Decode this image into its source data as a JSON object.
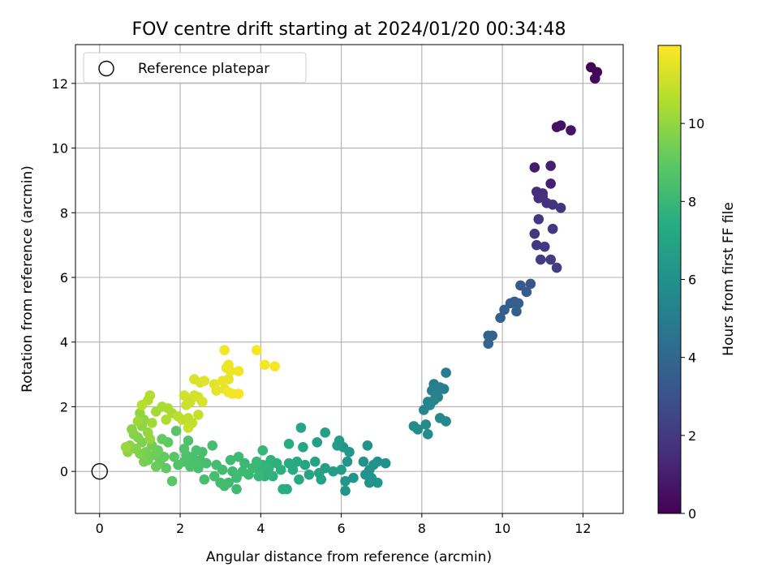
{
  "chart_data": {
    "type": "scatter",
    "title": "FOV centre drift starting at 2024/01/20 00:34:48",
    "xlabel": "Angular distance from reference (arcmin)",
    "ylabel": "Rotation from reference (arcmin)",
    "xlim": [
      -0.6,
      13.0
    ],
    "ylim": [
      -1.3,
      13.2
    ],
    "xticks": [
      0,
      2,
      4,
      6,
      8,
      10,
      12
    ],
    "yticks": [
      0,
      2,
      4,
      6,
      8,
      10,
      12
    ],
    "grid": true,
    "legend": {
      "position": "top-left",
      "entries": [
        {
          "label": "Reference platepar",
          "marker": "open-circle",
          "x": 0,
          "y": 0
        }
      ]
    },
    "colorbar": {
      "label": "Hours from first FF file",
      "colormap": "viridis",
      "range": [
        0,
        12
      ],
      "ticks": [
        0,
        2,
        4,
        6,
        8,
        10
      ]
    },
    "points": [
      {
        "x": 12.2,
        "y": 12.5,
        "c": 0.1
      },
      {
        "x": 12.35,
        "y": 12.35,
        "c": 0.15
      },
      {
        "x": 12.3,
        "y": 12.15,
        "c": 0.2
      },
      {
        "x": 11.35,
        "y": 10.65,
        "c": 0.5
      },
      {
        "x": 11.45,
        "y": 10.7,
        "c": 0.55
      },
      {
        "x": 11.7,
        "y": 10.55,
        "c": 0.6
      },
      {
        "x": 10.8,
        "y": 9.4,
        "c": 0.9
      },
      {
        "x": 11.2,
        "y": 9.45,
        "c": 1.0
      },
      {
        "x": 11.2,
        "y": 8.9,
        "c": 1.1
      },
      {
        "x": 10.85,
        "y": 8.65,
        "c": 1.5
      },
      {
        "x": 11.0,
        "y": 8.6,
        "c": 1.55
      },
      {
        "x": 10.9,
        "y": 8.45,
        "c": 1.6
      },
      {
        "x": 11.0,
        "y": 8.5,
        "c": 1.65
      },
      {
        "x": 11.1,
        "y": 8.3,
        "c": 1.7
      },
      {
        "x": 11.25,
        "y": 8.25,
        "c": 1.75
      },
      {
        "x": 11.45,
        "y": 8.15,
        "c": 1.8
      },
      {
        "x": 10.9,
        "y": 7.8,
        "c": 1.85
      },
      {
        "x": 11.25,
        "y": 7.5,
        "c": 1.9
      },
      {
        "x": 10.8,
        "y": 7.35,
        "c": 1.95
      },
      {
        "x": 10.85,
        "y": 7.0,
        "c": 2.0
      },
      {
        "x": 11.05,
        "y": 6.95,
        "c": 2.05
      },
      {
        "x": 10.95,
        "y": 6.55,
        "c": 2.1
      },
      {
        "x": 11.2,
        "y": 6.55,
        "c": 2.15
      },
      {
        "x": 11.35,
        "y": 6.3,
        "c": 2.2
      },
      {
        "x": 10.7,
        "y": 5.8,
        "c": 3.3
      },
      {
        "x": 10.45,
        "y": 5.75,
        "c": 3.35
      },
      {
        "x": 10.6,
        "y": 5.55,
        "c": 3.4
      },
      {
        "x": 10.3,
        "y": 5.25,
        "c": 3.45
      },
      {
        "x": 10.2,
        "y": 5.2,
        "c": 3.5
      },
      {
        "x": 10.4,
        "y": 5.2,
        "c": 3.55
      },
      {
        "x": 10.05,
        "y": 5.0,
        "c": 3.6
      },
      {
        "x": 10.35,
        "y": 4.95,
        "c": 3.65
      },
      {
        "x": 9.95,
        "y": 4.75,
        "c": 3.7
      },
      {
        "x": 9.65,
        "y": 4.2,
        "c": 3.75
      },
      {
        "x": 9.75,
        "y": 4.2,
        "c": 3.8
      },
      {
        "x": 9.65,
        "y": 3.95,
        "c": 3.85
      },
      {
        "x": 8.6,
        "y": 3.05,
        "c": 5.0
      },
      {
        "x": 8.3,
        "y": 2.7,
        "c": 5.05
      },
      {
        "x": 8.45,
        "y": 2.6,
        "c": 5.1
      },
      {
        "x": 8.55,
        "y": 2.55,
        "c": 5.15
      },
      {
        "x": 8.25,
        "y": 2.5,
        "c": 5.2
      },
      {
        "x": 8.35,
        "y": 2.4,
        "c": 5.25
      },
      {
        "x": 8.4,
        "y": 2.3,
        "c": 5.3
      },
      {
        "x": 8.3,
        "y": 2.2,
        "c": 5.35
      },
      {
        "x": 8.15,
        "y": 2.15,
        "c": 5.4
      },
      {
        "x": 8.2,
        "y": 2.05,
        "c": 5.45
      },
      {
        "x": 8.05,
        "y": 1.9,
        "c": 5.5
      },
      {
        "x": 8.45,
        "y": 1.65,
        "c": 5.55
      },
      {
        "x": 8.6,
        "y": 1.55,
        "c": 5.6
      },
      {
        "x": 8.1,
        "y": 1.45,
        "c": 5.65
      },
      {
        "x": 7.8,
        "y": 1.4,
        "c": 5.7
      },
      {
        "x": 7.9,
        "y": 1.3,
        "c": 5.75
      },
      {
        "x": 8.15,
        "y": 1.15,
        "c": 5.8
      },
      {
        "x": 7.1,
        "y": 0.25,
        "c": 6.0
      },
      {
        "x": 6.9,
        "y": 0.3,
        "c": 6.02
      },
      {
        "x": 6.8,
        "y": 0.2,
        "c": 6.04
      },
      {
        "x": 6.65,
        "y": 0.8,
        "c": 6.06
      },
      {
        "x": 6.55,
        "y": 0.3,
        "c": 6.08
      },
      {
        "x": 6.7,
        "y": 0.05,
        "c": 6.1
      },
      {
        "x": 6.6,
        "y": -0.1,
        "c": 6.12
      },
      {
        "x": 6.75,
        "y": -0.2,
        "c": 6.14
      },
      {
        "x": 6.9,
        "y": -0.35,
        "c": 6.16
      },
      {
        "x": 6.7,
        "y": -0.35,
        "c": 6.18
      },
      {
        "x": 6.3,
        "y": -0.2,
        "c": 6.2
      },
      {
        "x": 6.1,
        "y": -0.6,
        "c": 6.22
      },
      {
        "x": 6.1,
        "y": -0.3,
        "c": 6.24
      },
      {
        "x": 6.15,
        "y": 0.3,
        "c": 6.26
      },
      {
        "x": 6.05,
        "y": 0.75,
        "c": 6.28
      },
      {
        "x": 6.2,
        "y": 0.6,
        "c": 6.3
      },
      {
        "x": 5.95,
        "y": 0.95,
        "c": 6.5
      },
      {
        "x": 5.9,
        "y": 0.8,
        "c": 6.55
      },
      {
        "x": 6.0,
        "y": 0.05,
        "c": 6.6
      },
      {
        "x": 5.8,
        "y": 0.0,
        "c": 6.65
      },
      {
        "x": 5.6,
        "y": 0.1,
        "c": 6.7
      },
      {
        "x": 5.6,
        "y": 1.2,
        "c": 6.75
      },
      {
        "x": 5.4,
        "y": 0.9,
        "c": 6.8
      },
      {
        "x": 5.45,
        "y": -0.05,
        "c": 6.85
      },
      {
        "x": 5.5,
        "y": -0.25,
        "c": 6.9
      },
      {
        "x": 5.35,
        "y": 0.3,
        "c": 6.95
      },
      {
        "x": 5.2,
        "y": -0.1,
        "c": 7.0
      },
      {
        "x": 5.1,
        "y": 0.2,
        "c": 7.05
      },
      {
        "x": 5.05,
        "y": 0.75,
        "c": 7.1
      },
      {
        "x": 5.0,
        "y": 1.35,
        "c": 7.15
      },
      {
        "x": 4.95,
        "y": -0.25,
        "c": 7.2
      },
      {
        "x": 4.9,
        "y": 0.3,
        "c": 7.25
      },
      {
        "x": 4.8,
        "y": 0.05,
        "c": 7.3
      },
      {
        "x": 4.7,
        "y": 0.25,
        "c": 7.35
      },
      {
        "x": 4.7,
        "y": 0.85,
        "c": 7.4
      },
      {
        "x": 4.65,
        "y": -0.55,
        "c": 7.45
      },
      {
        "x": 4.55,
        "y": -0.55,
        "c": 7.5
      },
      {
        "x": 4.5,
        "y": 0.05,
        "c": 7.55
      },
      {
        "x": 4.4,
        "y": 0.25,
        "c": 7.6
      },
      {
        "x": 4.3,
        "y": -0.15,
        "c": 7.65
      },
      {
        "x": 4.25,
        "y": 0.35,
        "c": 7.7
      },
      {
        "x": 4.2,
        "y": 0.1,
        "c": 7.75
      },
      {
        "x": 4.1,
        "y": -0.15,
        "c": 7.8
      },
      {
        "x": 4.05,
        "y": 0.2,
        "c": 7.85
      },
      {
        "x": 4.0,
        "y": 0.05,
        "c": 7.9
      },
      {
        "x": 4.05,
        "y": 0.65,
        "c": 7.95
      },
      {
        "x": 3.95,
        "y": -0.15,
        "c": 8.0
      },
      {
        "x": 3.9,
        "y": 0.3,
        "c": 8.02
      },
      {
        "x": 3.8,
        "y": 0.1,
        "c": 8.04
      },
      {
        "x": 3.7,
        "y": -0.1,
        "c": 8.06
      },
      {
        "x": 3.6,
        "y": 0.25,
        "c": 8.08
      },
      {
        "x": 3.55,
        "y": 0.0,
        "c": 8.1
      },
      {
        "x": 3.45,
        "y": 0.45,
        "c": 8.12
      },
      {
        "x": 3.4,
        "y": -0.2,
        "c": 8.14
      },
      {
        "x": 3.4,
        "y": -0.55,
        "c": 8.16
      },
      {
        "x": 3.3,
        "y": 0.0,
        "c": 8.18
      },
      {
        "x": 3.25,
        "y": 0.35,
        "c": 8.2
      },
      {
        "x": 3.2,
        "y": -0.35,
        "c": 8.22
      },
      {
        "x": 3.1,
        "y": -0.45,
        "c": 8.24
      },
      {
        "x": 3.05,
        "y": 0.05,
        "c": 8.26
      },
      {
        "x": 3.0,
        "y": -0.35,
        "c": 8.28
      },
      {
        "x": 2.9,
        "y": 0.2,
        "c": 8.3
      },
      {
        "x": 2.85,
        "y": -0.15,
        "c": 8.32
      },
      {
        "x": 2.8,
        "y": 0.8,
        "c": 8.34
      },
      {
        "x": 2.65,
        "y": 0.25,
        "c": 8.36
      },
      {
        "x": 2.6,
        "y": -0.25,
        "c": 8.38
      },
      {
        "x": 2.55,
        "y": 0.6,
        "c": 8.4
      },
      {
        "x": 2.5,
        "y": 0.35,
        "c": 8.42
      },
      {
        "x": 2.45,
        "y": 0.1,
        "c": 8.44
      },
      {
        "x": 2.4,
        "y": 0.65,
        "c": 8.46
      },
      {
        "x": 2.35,
        "y": 0.3,
        "c": 8.48
      },
      {
        "x": 2.3,
        "y": 0.45,
        "c": 8.5
      },
      {
        "x": 2.25,
        "y": 0.15,
        "c": 8.52
      },
      {
        "x": 2.2,
        "y": 0.95,
        "c": 8.54
      },
      {
        "x": 2.15,
        "y": 0.5,
        "c": 8.56
      },
      {
        "x": 2.1,
        "y": 0.3,
        "c": 8.58
      },
      {
        "x": 2.1,
        "y": 0.7,
        "c": 8.6
      },
      {
        "x": 1.95,
        "y": 0.2,
        "c": 8.62
      },
      {
        "x": 1.9,
        "y": 1.25,
        "c": 8.8
      },
      {
        "x": 1.85,
        "y": 0.45,
        "c": 8.85
      },
      {
        "x": 1.8,
        "y": -0.3,
        "c": 8.9
      },
      {
        "x": 1.7,
        "y": 0.9,
        "c": 8.95
      },
      {
        "x": 1.65,
        "y": 0.1,
        "c": 9.0
      },
      {
        "x": 1.6,
        "y": 0.45,
        "c": 9.05
      },
      {
        "x": 1.55,
        "y": 1.0,
        "c": 9.1
      },
      {
        "x": 1.5,
        "y": 0.3,
        "c": 9.15
      },
      {
        "x": 1.45,
        "y": 0.65,
        "c": 9.2
      },
      {
        "x": 1.4,
        "y": 0.15,
        "c": 9.25
      },
      {
        "x": 1.35,
        "y": 0.5,
        "c": 9.3
      },
      {
        "x": 1.3,
        "y": 0.8,
        "c": 9.35
      },
      {
        "x": 1.2,
        "y": 0.35,
        "c": 9.4
      },
      {
        "x": 1.15,
        "y": 0.6,
        "c": 9.45
      },
      {
        "x": 1.1,
        "y": 0.3,
        "c": 9.5
      },
      {
        "x": 1.05,
        "y": 0.9,
        "c": 9.55
      },
      {
        "x": 1.0,
        "y": 0.55,
        "c": 9.6
      },
      {
        "x": 0.95,
        "y": 1.05,
        "c": 9.65
      },
      {
        "x": 0.9,
        "y": 0.7,
        "c": 9.7
      },
      {
        "x": 0.85,
        "y": 1.15,
        "c": 9.75
      },
      {
        "x": 0.8,
        "y": 1.3,
        "c": 9.8
      },
      {
        "x": 0.75,
        "y": 0.8,
        "c": 9.85
      },
      {
        "x": 0.7,
        "y": 0.6,
        "c": 9.9
      },
      {
        "x": 1.05,
        "y": 1.4,
        "c": 9.92
      },
      {
        "x": 1.1,
        "y": 1.6,
        "c": 9.95
      },
      {
        "x": 1.0,
        "y": 1.8,
        "c": 9.98
      },
      {
        "x": 1.2,
        "y": 1.2,
        "c": 10.0
      },
      {
        "x": 1.25,
        "y": 1.0,
        "c": 10.05
      },
      {
        "x": 0.65,
        "y": 0.75,
        "c": 10.1
      },
      {
        "x": 0.95,
        "y": 1.55,
        "c": 10.2
      },
      {
        "x": 1.3,
        "y": 1.5,
        "c": 10.3
      },
      {
        "x": 1.4,
        "y": 1.85,
        "c": 10.35
      },
      {
        "x": 1.55,
        "y": 2.0,
        "c": 10.4
      },
      {
        "x": 1.7,
        "y": 1.95,
        "c": 10.45
      },
      {
        "x": 1.8,
        "y": 1.8,
        "c": 10.5
      },
      {
        "x": 1.65,
        "y": 1.6,
        "c": 10.55
      },
      {
        "x": 1.2,
        "y": 2.2,
        "c": 10.6
      },
      {
        "x": 1.25,
        "y": 2.35,
        "c": 10.65
      },
      {
        "x": 1.05,
        "y": 2.05,
        "c": 10.7
      },
      {
        "x": 1.95,
        "y": 1.7,
        "c": 10.75
      },
      {
        "x": 2.05,
        "y": 1.6,
        "c": 10.8
      },
      {
        "x": 2.2,
        "y": 1.65,
        "c": 10.85
      },
      {
        "x": 2.3,
        "y": 1.5,
        "c": 10.9
      },
      {
        "x": 2.45,
        "y": 1.75,
        "c": 10.95
      },
      {
        "x": 2.2,
        "y": 1.35,
        "c": 11.0
      },
      {
        "x": 2.15,
        "y": 2.05,
        "c": 11.05
      },
      {
        "x": 2.25,
        "y": 2.15,
        "c": 11.1
      },
      {
        "x": 2.1,
        "y": 2.35,
        "c": 11.15
      },
      {
        "x": 2.35,
        "y": 2.35,
        "c": 11.2
      },
      {
        "x": 2.45,
        "y": 2.3,
        "c": 11.25
      },
      {
        "x": 2.55,
        "y": 2.15,
        "c": 11.3
      },
      {
        "x": 2.35,
        "y": 2.85,
        "c": 11.35
      },
      {
        "x": 2.5,
        "y": 2.75,
        "c": 11.4
      },
      {
        "x": 2.6,
        "y": 2.8,
        "c": 11.45
      },
      {
        "x": 2.85,
        "y": 2.7,
        "c": 11.5
      },
      {
        "x": 2.9,
        "y": 2.5,
        "c": 11.55
      },
      {
        "x": 3.1,
        "y": 2.55,
        "c": 11.6
      },
      {
        "x": 3.05,
        "y": 2.8,
        "c": 11.62
      },
      {
        "x": 3.2,
        "y": 2.85,
        "c": 11.65
      },
      {
        "x": 3.15,
        "y": 3.2,
        "c": 11.68
      },
      {
        "x": 3.25,
        "y": 3.1,
        "c": 11.7
      },
      {
        "x": 3.2,
        "y": 3.3,
        "c": 11.72
      },
      {
        "x": 3.1,
        "y": 3.75,
        "c": 11.75
      },
      {
        "x": 3.45,
        "y": 3.1,
        "c": 11.78
      },
      {
        "x": 3.2,
        "y": 2.45,
        "c": 11.8
      },
      {
        "x": 3.3,
        "y": 2.4,
        "c": 11.82
      },
      {
        "x": 3.45,
        "y": 2.4,
        "c": 11.84
      },
      {
        "x": 3.9,
        "y": 3.75,
        "c": 11.86
      },
      {
        "x": 4.1,
        "y": 3.3,
        "c": 11.88
      },
      {
        "x": 4.35,
        "y": 3.25,
        "c": 11.9
      }
    ]
  }
}
